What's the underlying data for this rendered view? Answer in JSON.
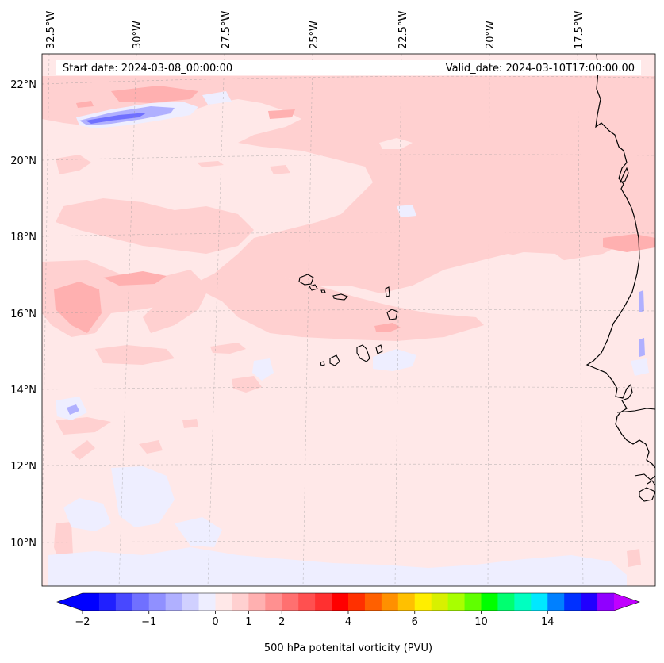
{
  "header": {
    "start_date": "Start date: 2024-03-08_00:00:00",
    "valid_date": "Valid_date: 2024-03-10T17:00:00.00"
  },
  "axes": {
    "lon_labels": [
      "32.5°W",
      "30°W",
      "27.5°W",
      "25°W",
      "22.5°W",
      "20°W",
      "17.5°W"
    ],
    "lat_labels": [
      "22°N",
      "20°N",
      "18°N",
      "16°N",
      "14°N",
      "12°N",
      "10°N"
    ]
  },
  "colorbar": {
    "title": "500 hPa potenital vorticity (PVU)",
    "tick_labels": [
      "−2",
      "−1",
      "0",
      "1",
      "2",
      "4",
      "6",
      "10",
      "14"
    ],
    "colors": [
      "#0000ff",
      "#2020ff",
      "#4848ff",
      "#7070ff",
      "#9090ff",
      "#b0b0ff",
      "#d0d0ff",
      "#eeeeff",
      "#ffe8e8",
      "#ffd0d0",
      "#ffb0b0",
      "#ff9090",
      "#ff7070",
      "#ff5050",
      "#ff3030",
      "#ff0000",
      "#ff3000",
      "#ff6000",
      "#ff9000",
      "#ffc000",
      "#ffee00",
      "#d8f000",
      "#a8ff00",
      "#60ff00",
      "#00ff00",
      "#00ff70",
      "#00ffc0",
      "#00e8ff",
      "#0080ff",
      "#0030ff",
      "#2000ff",
      "#9000ff"
    ],
    "extend_low_color": "#0000ff",
    "extend_high_color": "#c000ff"
  },
  "colors": {
    "background_field": "#ffe8e8",
    "moderate_pv": "#ffd0d0",
    "higher_pv": "#ffb0b0",
    "negative_pv": "#eeeeff",
    "strong_negative_pv": "#7070ff",
    "coastline": "#000000"
  }
}
